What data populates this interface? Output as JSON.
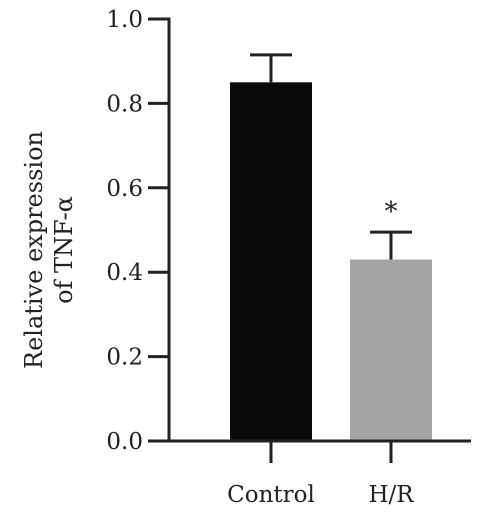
{
  "chart_data": {
    "type": "bar",
    "categories": [
      "Control",
      "H/R"
    ],
    "values": [
      0.85,
      0.43
    ],
    "error": [
      0.065,
      0.065
    ],
    "colors": [
      "#0a0a0a",
      "#a3a4a6"
    ],
    "ylabel_lines": [
      "Relative expression",
      "of TNF-α"
    ],
    "ylim": [
      0,
      1.0
    ],
    "yticks": [
      0.0,
      0.2,
      0.4,
      0.6,
      0.8,
      1.0
    ],
    "ytick_labels": [
      "0.0",
      "0.2",
      "0.4",
      "0.6",
      "0.8",
      "1.0"
    ],
    "annotations": [
      {
        "category": "H/R",
        "text": "*"
      }
    ],
    "grid": false,
    "legend": "none"
  }
}
